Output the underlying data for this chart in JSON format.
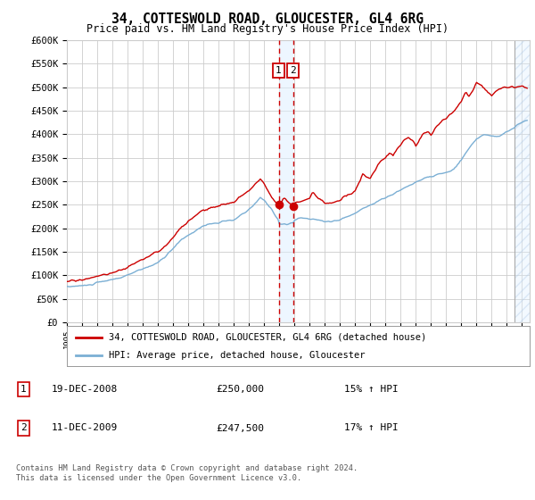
{
  "title": "34, COTTESWOLD ROAD, GLOUCESTER, GL4 6RG",
  "subtitle": "Price paid vs. HM Land Registry's House Price Index (HPI)",
  "legend_line1": "34, COTTESWOLD ROAD, GLOUCESTER, GL4 6RG (detached house)",
  "legend_line2": "HPI: Average price, detached house, Gloucester",
  "sale1_date": "19-DEC-2008",
  "sale1_price": 250000,
  "sale1_year": 2008.96,
  "sale1_hpi_pct": "15% ↑ HPI",
  "sale2_date": "11-DEC-2009",
  "sale2_price": 247500,
  "sale2_year": 2009.92,
  "sale2_hpi_pct": "17% ↑ HPI",
  "footer1": "Contains HM Land Registry data © Crown copyright and database right 2024.",
  "footer2": "This data is licensed under the Open Government Licence v3.0.",
  "hpi_color": "#7bafd4",
  "price_color": "#cc0000",
  "marker_box_color": "#cc0000",
  "dashed_color": "#cc0000",
  "ylim": [
    0,
    600000
  ],
  "yticks": [
    0,
    50000,
    100000,
    150000,
    200000,
    250000,
    300000,
    350000,
    400000,
    450000,
    500000,
    550000,
    600000
  ],
  "xmin": 1995.0,
  "xmax": 2025.5,
  "hatch_start": 2024.5,
  "background_color": "#ffffff",
  "grid_color": "#cccccc"
}
